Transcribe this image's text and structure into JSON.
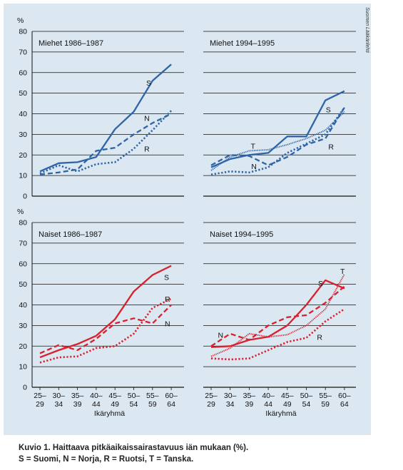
{
  "credit": "Suomen Lääkärilehti",
  "caption": {
    "line1": "Kuvio 1. Haittaava pitkäaikaissairastavuus iän mukaan (%).",
    "line2": "S = Suomi, N = Norja, R = Ruotsi, T = Tanska."
  },
  "chart_data": [
    {
      "type": "line",
      "title": "Miehet 1986–1987",
      "ylabel": "%",
      "ylim": [
        0,
        80
      ],
      "yticks": [
        0,
        10,
        20,
        30,
        40,
        50,
        60,
        70,
        80
      ],
      "color": "#2f64a7",
      "categories": [
        "25–29",
        "30–34",
        "35–39",
        "40–44",
        "45–49",
        "50–54",
        "55–59",
        "60–64"
      ],
      "xlabel": "",
      "series": [
        {
          "name": "S",
          "style": "solid",
          "values": [
            12,
            16,
            16.5,
            19,
            32.5,
            41,
            56,
            64
          ],
          "label_pos": {
            "i": 5.8,
            "v": 55
          }
        },
        {
          "name": "N",
          "style": "dashed",
          "values": [
            10.5,
            11.5,
            13,
            22,
            23.5,
            30,
            35.5,
            40
          ],
          "label_pos": {
            "i": 5.7,
            "v": 38
          }
        },
        {
          "name": "R",
          "style": "dotted",
          "values": [
            11,
            15,
            12,
            15.5,
            16.5,
            23,
            32,
            41.5
          ],
          "label_pos": {
            "i": 5.7,
            "v": 23
          }
        }
      ]
    },
    {
      "type": "line",
      "title": "Miehet 1994–1995",
      "ylabel": "",
      "ylim": [
        0,
        80
      ],
      "yticks": [
        0,
        10,
        20,
        30,
        40,
        50,
        60,
        70,
        80
      ],
      "color": "#2f64a7",
      "categories": [
        "25–29",
        "30–34",
        "35–39",
        "40–44",
        "45–49",
        "50–54",
        "55–59",
        "60–64"
      ],
      "xlabel": "",
      "series": [
        {
          "name": "S",
          "style": "solid",
          "values": [
            14,
            18,
            20,
            21,
            29,
            29,
            46.5,
            51
          ],
          "label_pos": {
            "i": 6.15,
            "v": 42
          }
        },
        {
          "name": "N",
          "style": "dashed",
          "values": [
            15,
            20,
            19.5,
            15,
            19,
            25,
            28,
            43
          ],
          "label_pos": {
            "i": 2.25,
            "v": 14.5
          }
        },
        {
          "name": "R",
          "style": "dotted",
          "values": [
            10.5,
            12,
            11.5,
            14,
            21,
            25.5,
            30,
            43
          ],
          "label_pos": {
            "i": 6.3,
            "v": 24
          }
        },
        {
          "name": "T",
          "style": "dense",
          "values": [
            12.5,
            19,
            22,
            22.5,
            25,
            28,
            32,
            41
          ],
          "label_pos": {
            "i": 2.2,
            "v": 24.5
          }
        }
      ]
    },
    {
      "type": "line",
      "title": "Naiset 1986–1987",
      "ylabel": "%",
      "ylim": [
        0,
        80
      ],
      "yticks": [
        0,
        10,
        20,
        30,
        40,
        50,
        60,
        70,
        80
      ],
      "color": "#d8202e",
      "categories": [
        "25–29",
        "30–34",
        "35–39",
        "40–44",
        "45–49",
        "50–54",
        "55–59",
        "60–64"
      ],
      "xlabel": "Ikäryhmä",
      "series": [
        {
          "name": "S",
          "style": "solid",
          "values": [
            14.5,
            18,
            21,
            25,
            33,
            46.5,
            54.5,
            59
          ],
          "label_pos": {
            "i": 6.75,
            "v": 53.5
          }
        },
        {
          "name": "R",
          "style": "dashed",
          "values": [
            16.5,
            20.5,
            18,
            23.5,
            31,
            33.5,
            31,
            40
          ],
          "label_pos": {
            "i": 6.8,
            "v": 43
          }
        },
        {
          "name": "N",
          "style": "dotted",
          "values": [
            12,
            14.5,
            15,
            19,
            20,
            26,
            38.5,
            43
          ],
          "label_pos": {
            "i": 6.8,
            "v": 31
          }
        }
      ]
    },
    {
      "type": "line",
      "title": "Naiset 1994–1995",
      "ylabel": "",
      "ylim": [
        0,
        80
      ],
      "yticks": [
        0,
        10,
        20,
        30,
        40,
        50,
        60,
        70,
        80
      ],
      "color": "#d8202e",
      "categories": [
        "25–29",
        "30–34",
        "35–39",
        "40–44",
        "45–49",
        "50–54",
        "55–59",
        "60–64"
      ],
      "xlabel": "Ikäryhmä",
      "series": [
        {
          "name": "S",
          "style": "solid",
          "values": [
            19.5,
            20,
            23,
            24.5,
            30,
            40,
            52,
            48
          ],
          "label_pos": {
            "i": 5.75,
            "v": 50.5
          }
        },
        {
          "name": "N",
          "style": "dashed",
          "values": [
            20,
            26,
            23,
            30,
            34,
            35,
            41,
            49
          ],
          "label_pos": {
            "i": 0.5,
            "v": 25.5
          }
        },
        {
          "name": "R",
          "style": "dotted",
          "values": [
            14,
            13.5,
            14,
            18,
            22,
            24,
            32,
            38
          ],
          "label_pos": {
            "i": 5.7,
            "v": 24.5
          }
        },
        {
          "name": "T",
          "style": "dense",
          "values": [
            15,
            19,
            26,
            24.5,
            25.5,
            30,
            38,
            55
          ],
          "label_pos": {
            "i": 6.9,
            "v": 56.5
          }
        }
      ]
    }
  ]
}
